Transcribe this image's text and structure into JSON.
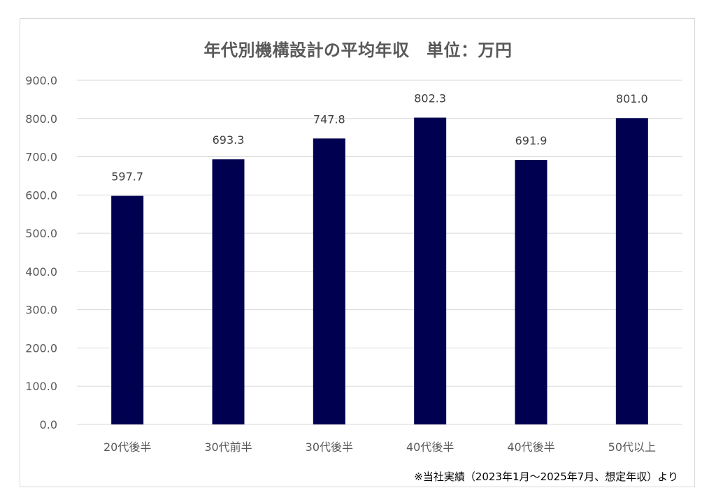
{
  "chart_data": {
    "type": "bar",
    "title": "年代別機構設計の平均年収　単位：万円",
    "categories": [
      "20代後半",
      "30代前半",
      "30代後半",
      "40代後半",
      "40代後半",
      "50代以上"
    ],
    "values": [
      597.7,
      693.3,
      747.8,
      802.3,
      691.9,
      801.0
    ],
    "data_labels": [
      "597.7",
      "693.3",
      "747.8",
      "802.3",
      "691.9",
      "801.0"
    ],
    "y_ticks": [
      "0.0",
      "100.0",
      "200.0",
      "300.0",
      "400.0",
      "500.0",
      "600.0",
      "700.0",
      "800.0",
      "900.0"
    ],
    "ylim": [
      0,
      900
    ],
    "xlabel": "",
    "ylabel": "",
    "grid": true,
    "legend": "none",
    "bar_color": "#000050",
    "grid_color": "#d9d9d9"
  },
  "footnote": "※当社実績（2023年1月〜2025年7月、想定年収）より"
}
